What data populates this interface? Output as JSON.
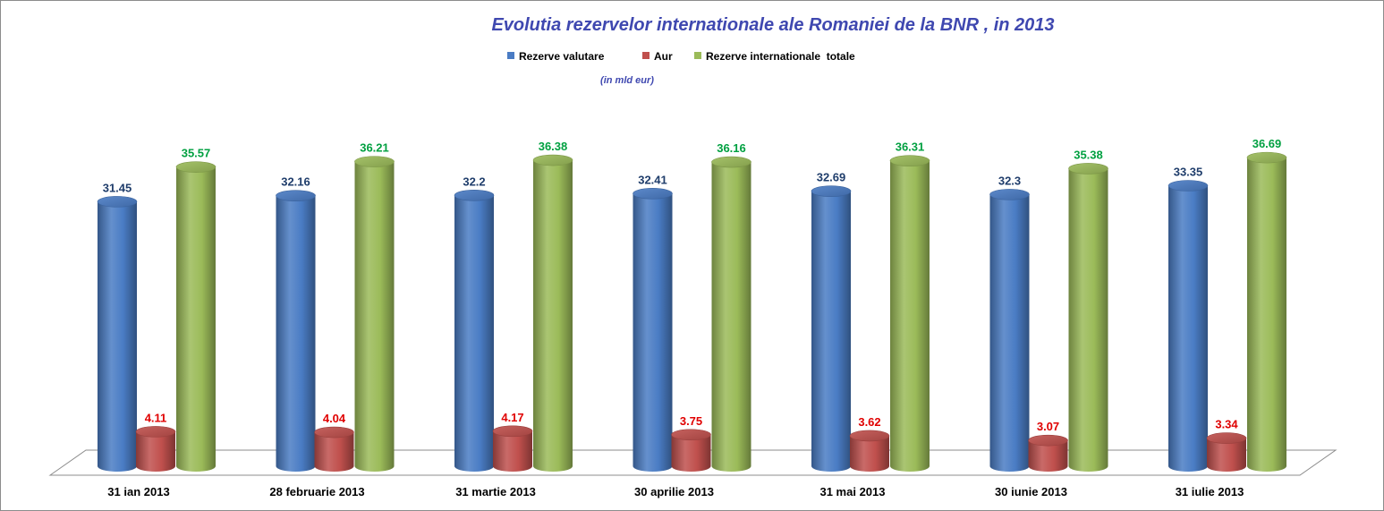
{
  "chart_data": {
    "type": "bar",
    "title": "Evolutia rezervelor internationale ale Romaniei de la BNR , in 2013",
    "subtitle": "(in mld eur)",
    "categories": [
      "31 ian 2013",
      "28 februarie 2013",
      "31 martie 2013",
      "30 aprilie 2013",
      "31 mai 2013",
      "30 iunie 2013",
      "31 iulie 2013"
    ],
    "series": [
      {
        "name": "Rezerve valutare",
        "values": [
          31.45,
          32.16,
          32.2,
          32.41,
          32.69,
          32.3,
          33.35
        ],
        "labels": [
          "31.45",
          "32.16",
          "32.2",
          "32.41",
          "32.69",
          "32.3",
          "33.35"
        ],
        "color": "#4a7cc4",
        "label_color": "#1f3d6b"
      },
      {
        "name": "Aur",
        "values": [
          4.11,
          4.04,
          4.17,
          3.75,
          3.62,
          3.07,
          3.34
        ],
        "labels": [
          "4.11",
          "4.04",
          "4.17",
          "3.75",
          "3.62",
          "3.07",
          "3.34"
        ],
        "color": "#c0504d",
        "label_color": "#e00000"
      },
      {
        "name": "Rezerve internationale  totale",
        "values": [
          35.57,
          36.21,
          36.38,
          36.16,
          36.31,
          35.38,
          36.69
        ],
        "labels": [
          "35.57",
          "36.21",
          "36.38",
          "36.16",
          "36.31",
          "35.38",
          "36.69"
        ],
        "color": "#9bbb59",
        "label_color": "#00a040"
      }
    ],
    "xlabel": "",
    "ylabel": "",
    "ylim": [
      0,
      40
    ],
    "grid": false,
    "legend_position": "top"
  }
}
